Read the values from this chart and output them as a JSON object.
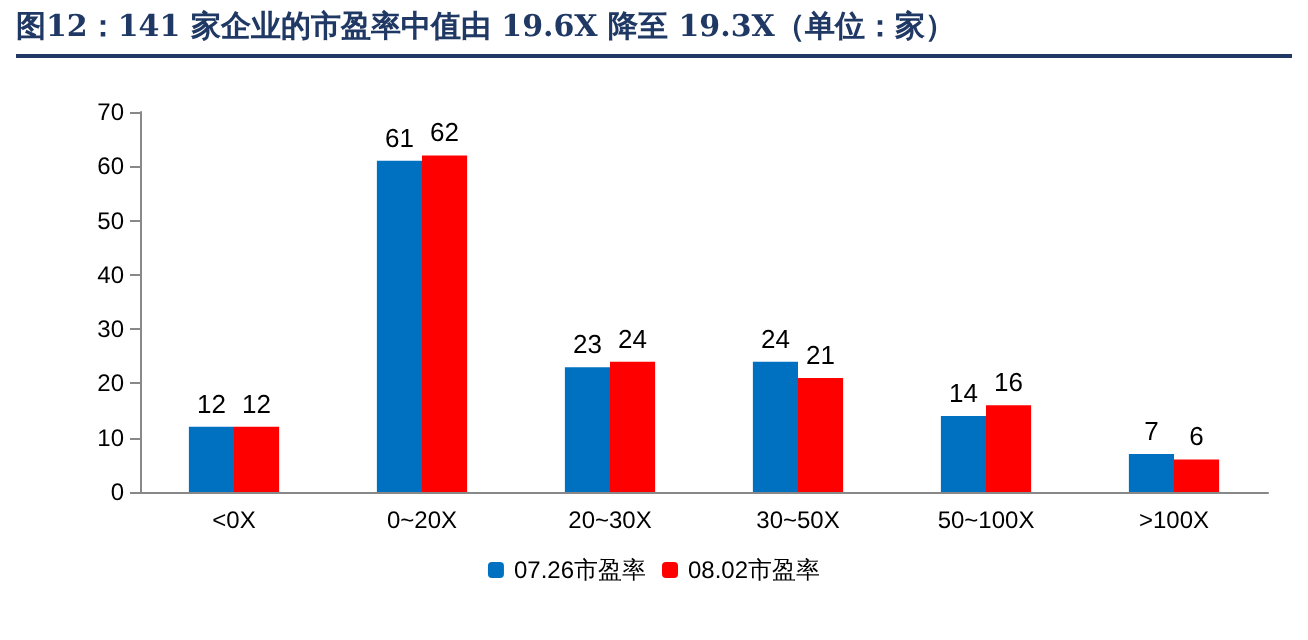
{
  "chart_data": {
    "type": "bar",
    "title": "图12：141 家企业的市盈率中值由 19.6X 降至 19.3X（单位：家）",
    "categories": [
      "<0X",
      "0~20X",
      "20~30X",
      "30~50X",
      "50~100X",
      ">100X"
    ],
    "series": [
      {
        "name": "07.26市盈率",
        "color": "#0070c0",
        "values": [
          12,
          61,
          23,
          24,
          14,
          7
        ]
      },
      {
        "name": "08.02市盈率",
        "color": "#ff0000",
        "values": [
          12,
          62,
          24,
          21,
          16,
          6
        ]
      }
    ],
    "ylim": [
      0,
      70
    ],
    "yticks": [
      0,
      10,
      20,
      30,
      40,
      50,
      60,
      70
    ],
    "grid": false,
    "legend": "bottom",
    "data_labels": true
  }
}
